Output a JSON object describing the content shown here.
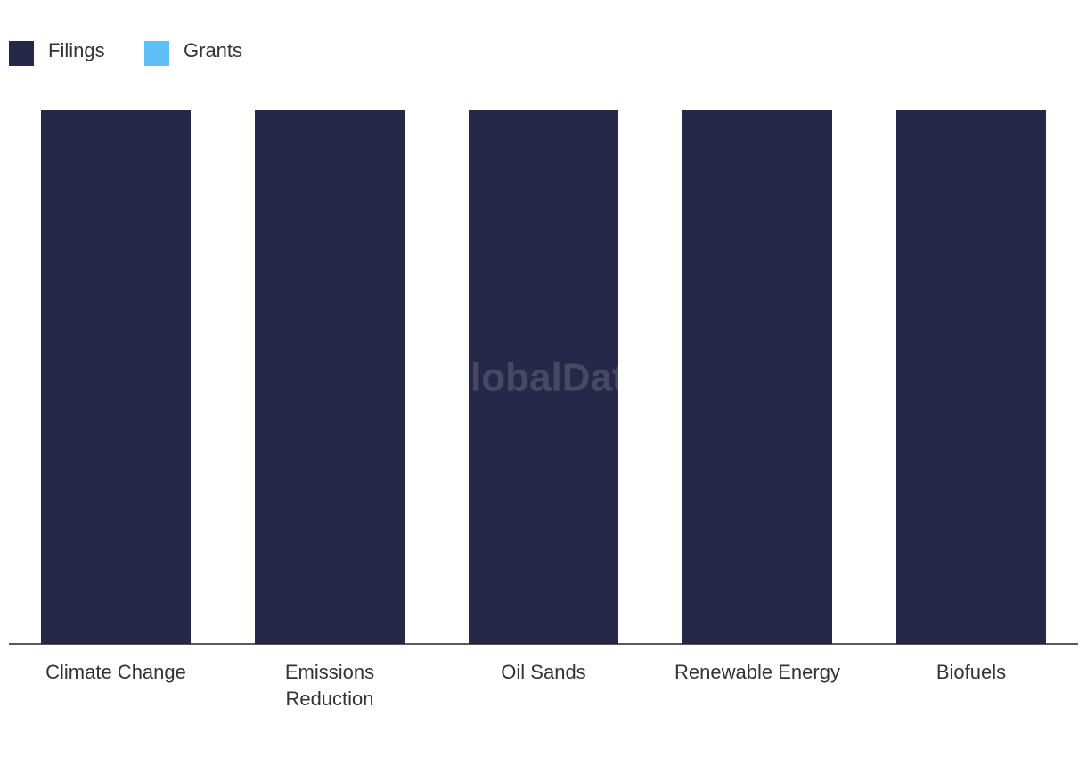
{
  "chart_data": {
    "type": "stacked-bar",
    "watermark": "GlobalData",
    "categories": [
      "Climate Change",
      "Emissions Reduction",
      "Oil Sands",
      "Renewable Energy",
      "Biofuels"
    ],
    "series": [
      {
        "name": "Filings",
        "color": "#262849",
        "values": [
          100,
          100,
          100,
          100,
          100
        ]
      },
      {
        "name": "Grants",
        "color": "#5fc0f8",
        "values": [
          0,
          0,
          0,
          0,
          0
        ]
      }
    ],
    "ylim": [
      0,
      100
    ],
    "legend": "top-left"
  }
}
